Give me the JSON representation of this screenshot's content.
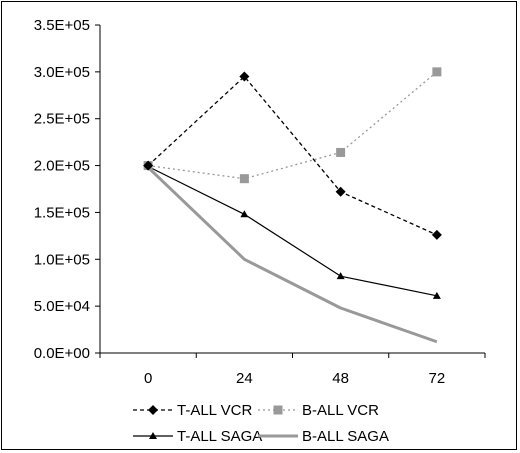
{
  "chart_data": {
    "type": "line",
    "categories": [
      "0",
      "24",
      "48",
      "72"
    ],
    "ylim": [
      0,
      350000
    ],
    "yticks": [
      "0.0E+00",
      "5.0E+04",
      "1.0E+05",
      "1.5E+05",
      "2.0E+05",
      "2.5E+05",
      "3.0E+05",
      "3.5E+05"
    ],
    "ytick_values": [
      0,
      50000,
      100000,
      150000,
      200000,
      250000,
      300000,
      350000
    ],
    "grid": false,
    "legend_position": "bottom",
    "series": [
      {
        "name": "T-ALL VCR",
        "values": [
          200000,
          295000,
          172000,
          126000
        ],
        "color": "#000000",
        "line": "dashed",
        "marker": "diamond"
      },
      {
        "name": "B-ALL VCR",
        "values": [
          200000,
          186000,
          214000,
          300000
        ],
        "color": "#999999",
        "line": "dotted",
        "marker": "square"
      },
      {
        "name": "T-ALL SAGA",
        "values": [
          199000,
          148000,
          82000,
          61000
        ],
        "color": "#000000",
        "line": "solid-thin",
        "marker": "triangle"
      },
      {
        "name": "B-ALL SAGA",
        "values": [
          198000,
          100000,
          48000,
          12000
        ],
        "color": "#999999",
        "line": "solid-thick",
        "marker": "none"
      }
    ]
  }
}
